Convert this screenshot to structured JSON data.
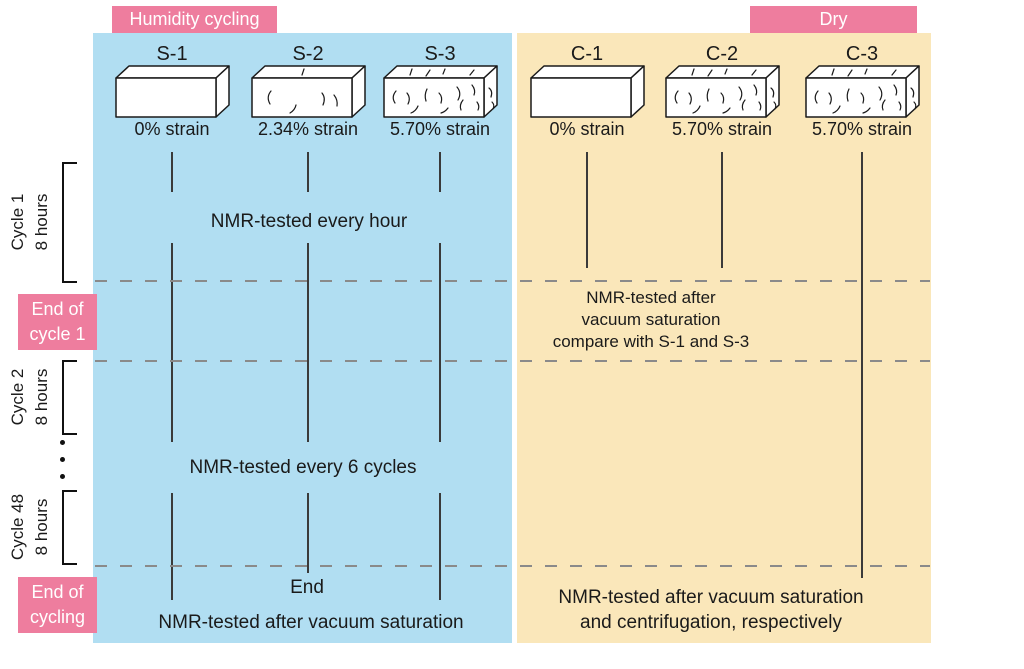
{
  "regions": {
    "humidity": {
      "label": "Humidity cycling",
      "bg": "#b1def2"
    },
    "dry": {
      "label": "Dry",
      "bg": "#fae7ba"
    },
    "label_bg": "#ee7d9e"
  },
  "colors": {
    "line": "#3a3a3a",
    "dash": "#8a8a8a",
    "box_stroke": "#1a1a1a"
  },
  "specimens": [
    {
      "id": "S-1",
      "strain": "0% strain",
      "cracks": "none"
    },
    {
      "id": "S-2",
      "strain": "2.34% strain",
      "cracks": "medium"
    },
    {
      "id": "S-3",
      "strain": "5.70% strain",
      "cracks": "high"
    },
    {
      "id": "C-1",
      "strain": "0% strain",
      "cracks": "none"
    },
    {
      "id": "C-2",
      "strain": "5.70% strain",
      "cracks": "high"
    },
    {
      "id": "C-3",
      "strain": "5.70% strain",
      "cracks": "high"
    }
  ],
  "timeline": {
    "cycles": [
      {
        "line1": "Cycle 1",
        "line2": "8 hours"
      },
      {
        "line1": "Cycle 2",
        "line2": "8 hours"
      },
      {
        "line1": "Cycle 48",
        "line2": "8 hours"
      }
    ],
    "milestones": [
      {
        "label_line1": "End of",
        "label_line2": "cycle 1"
      },
      {
        "label_line1": "End of",
        "label_line2": "cycling"
      }
    ]
  },
  "annotations": {
    "nmr_every_hour": "NMR-tested every hour",
    "nmr_every_6_cycles": "NMR-tested every 6 cycles",
    "end": "End",
    "nmr_vacuum_left": "NMR-tested after vacuum saturation",
    "right_mid_line1": "NMR-tested after",
    "right_mid_line2": "vacuum saturation",
    "right_mid_line3": "compare with S-1 and S-3",
    "right_bottom_line1": "NMR-tested after vacuum saturation",
    "right_bottom_line2": "and centrifugation, respectively"
  }
}
